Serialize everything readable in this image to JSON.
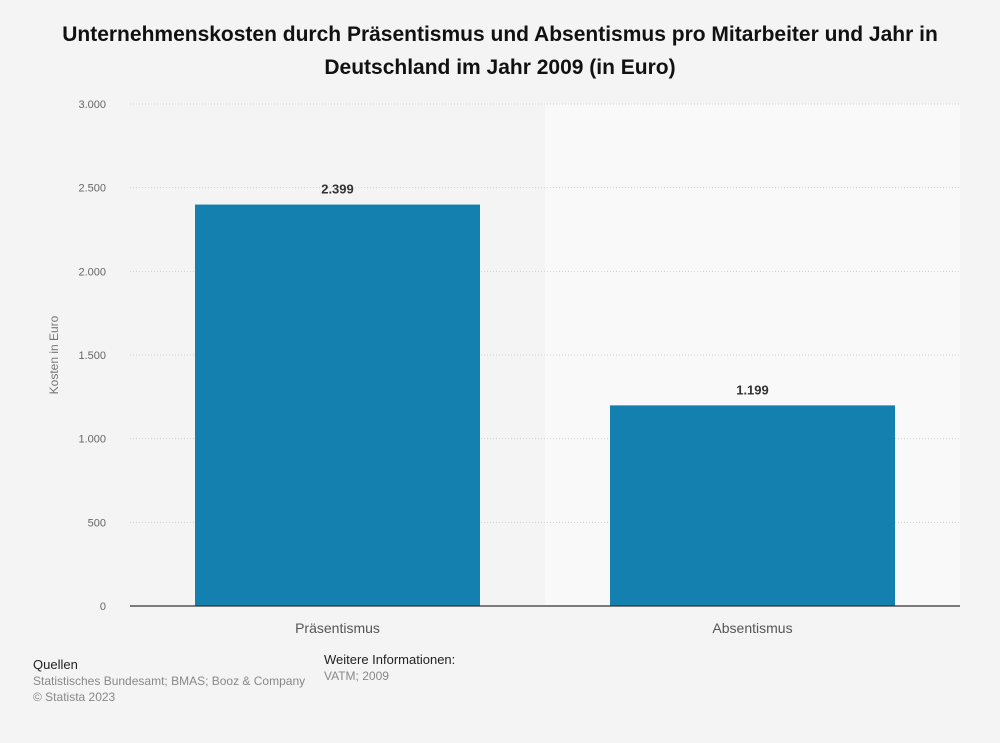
{
  "chart_data": {
    "type": "bar",
    "title": "Unternehmenskosten durch Präsentismus und Absentismus pro Mitarbeiter und Jahr in Deutschland im Jahr 2009 (in Euro)",
    "xlabel": "",
    "ylabel": "Kosten in Euro",
    "categories": [
      "Präsentismus",
      "Absentismus"
    ],
    "values": [
      2399,
      1199
    ],
    "value_labels": [
      "2.399",
      "1.199"
    ],
    "ylim": [
      0,
      3000
    ],
    "y_ticks": [
      0,
      500,
      1000,
      1500,
      2000,
      2500,
      3000
    ],
    "y_tick_labels": [
      "0",
      "500",
      "1.000",
      "1.500",
      "2.000",
      "2.500",
      "3.000"
    ],
    "grid": true,
    "bar_color": "#1380b0"
  },
  "footer": {
    "sources_heading": "Quellen",
    "sources_text": "Statistisches Bundesamt; BMAS; Booz & Company",
    "copyright": "© Statista 2023",
    "more_info_heading": "Weitere Informationen:",
    "more_info_text": "VATM; 2009"
  }
}
